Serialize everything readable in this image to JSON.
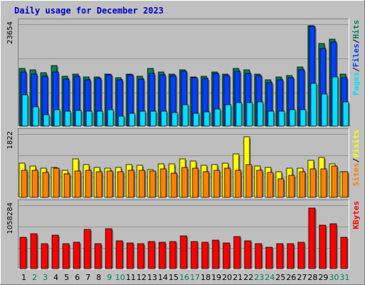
{
  "title": "Daily usage for December 2023",
  "colors": {
    "background": "#c0c0c0",
    "panel": "#bebebe",
    "hits": "#00805c",
    "files": "#0040ff",
    "pages": "#00e0ff",
    "visits": "#ffff00",
    "sites": "#ff8000",
    "kbytes": "#ff0000",
    "weekday": "#000000",
    "weekend": "#00805c",
    "title": "#0000cc"
  },
  "chart_data": [
    {
      "type": "bar",
      "name": "hits-files-pages",
      "max_label": "23654",
      "ymax": 23654,
      "legend": [
        "Pages",
        "/",
        "Files",
        "/",
        "Hits"
      ],
      "categories": [
        "1",
        "2",
        "3",
        "4",
        "5",
        "6",
        "7",
        "8",
        "9",
        "10",
        "11",
        "12",
        "13",
        "14",
        "15",
        "16",
        "17",
        "18",
        "19",
        "20",
        "21",
        "22",
        "23",
        "24",
        "25",
        "26",
        "27",
        "28",
        "29",
        "30",
        "31"
      ],
      "weekend": [
        false,
        true,
        true,
        false,
        false,
        false,
        false,
        false,
        true,
        true,
        false,
        false,
        false,
        false,
        false,
        true,
        true,
        false,
        false,
        false,
        false,
        false,
        true,
        true,
        false,
        false,
        false,
        false,
        false,
        true,
        true
      ],
      "series": [
        {
          "name": "Hits",
          "values": [
            13300,
            13000,
            12300,
            14000,
            11500,
            12000,
            11300,
            11400,
            12000,
            11100,
            12000,
            11500,
            13300,
            12500,
            12000,
            13000,
            11300,
            11500,
            12500,
            12000,
            13300,
            13000,
            12000,
            10600,
            11300,
            11700,
            13600,
            23200,
            19000,
            20000,
            12000
          ]
        },
        {
          "name": "Files",
          "values": [
            12500,
            12000,
            11500,
            12500,
            10900,
            11500,
            10700,
            11000,
            11800,
            10700,
            11800,
            10800,
            12200,
            11800,
            11700,
            12600,
            11100,
            11000,
            12200,
            11600,
            12600,
            12100,
            11600,
            10100,
            10600,
            11100,
            13000,
            23000,
            17900,
            19400,
            11200
          ]
        },
        {
          "name": "Pages",
          "values": [
            7200,
            4400,
            2700,
            3800,
            3400,
            3600,
            3400,
            3400,
            3800,
            2300,
            2900,
            3500,
            3400,
            3400,
            3200,
            5000,
            3000,
            3300,
            4000,
            4900,
            5400,
            5400,
            5600,
            3500,
            3500,
            3800,
            3800,
            9800,
            7400,
            11300,
            5600
          ]
        }
      ]
    },
    {
      "type": "bar",
      "name": "visits-sites",
      "max_label": "1822",
      "ymax": 1822,
      "legend": [
        "Sites",
        "/",
        "Visits"
      ],
      "categories": [
        "1",
        "2",
        "3",
        "4",
        "5",
        "6",
        "7",
        "8",
        "9",
        "10",
        "11",
        "12",
        "13",
        "14",
        "15",
        "16",
        "17",
        "18",
        "19",
        "20",
        "21",
        "22",
        "23",
        "24",
        "25",
        "26",
        "27",
        "28",
        "29",
        "30",
        "31"
      ],
      "series": [
        {
          "name": "Visits",
          "values": [
            980,
            890,
            830,
            860,
            760,
            1090,
            930,
            850,
            820,
            850,
            935,
            910,
            785,
            955,
            950,
            1100,
            1035,
            915,
            935,
            975,
            1230,
            1720,
            895,
            850,
            720,
            825,
            830,
            1055,
            1140,
            960,
            720
          ]
        },
        {
          "name": "Sites",
          "values": [
            760,
            775,
            700,
            840,
            660,
            740,
            760,
            735,
            755,
            725,
            765,
            765,
            750,
            815,
            690,
            855,
            825,
            725,
            770,
            835,
            760,
            935,
            760,
            710,
            535,
            620,
            720,
            810,
            815,
            900,
            720
          ]
        }
      ]
    },
    {
      "type": "bar",
      "name": "kbytes",
      "max_label": "1058284",
      "ymax": 1058284,
      "legend": [
        "KBytes"
      ],
      "categories": [
        "1",
        "2",
        "3",
        "4",
        "5",
        "6",
        "7",
        "8",
        "9",
        "10",
        "11",
        "12",
        "13",
        "14",
        "15",
        "16",
        "17",
        "18",
        "19",
        "20",
        "21",
        "22",
        "23",
        "24",
        "25",
        "26",
        "27",
        "28",
        "29",
        "30",
        "31"
      ],
      "series": [
        {
          "name": "KBytes",
          "values": [
            520000,
            580000,
            415000,
            555000,
            410000,
            440000,
            645000,
            415000,
            655000,
            460000,
            425000,
            415000,
            450000,
            430000,
            445000,
            545000,
            445000,
            430000,
            465000,
            425000,
            530000,
            460000,
            415000,
            350000,
            415000,
            415000,
            440000,
            1000000,
            720000,
            740000,
            515000
          ]
        }
      ]
    }
  ]
}
